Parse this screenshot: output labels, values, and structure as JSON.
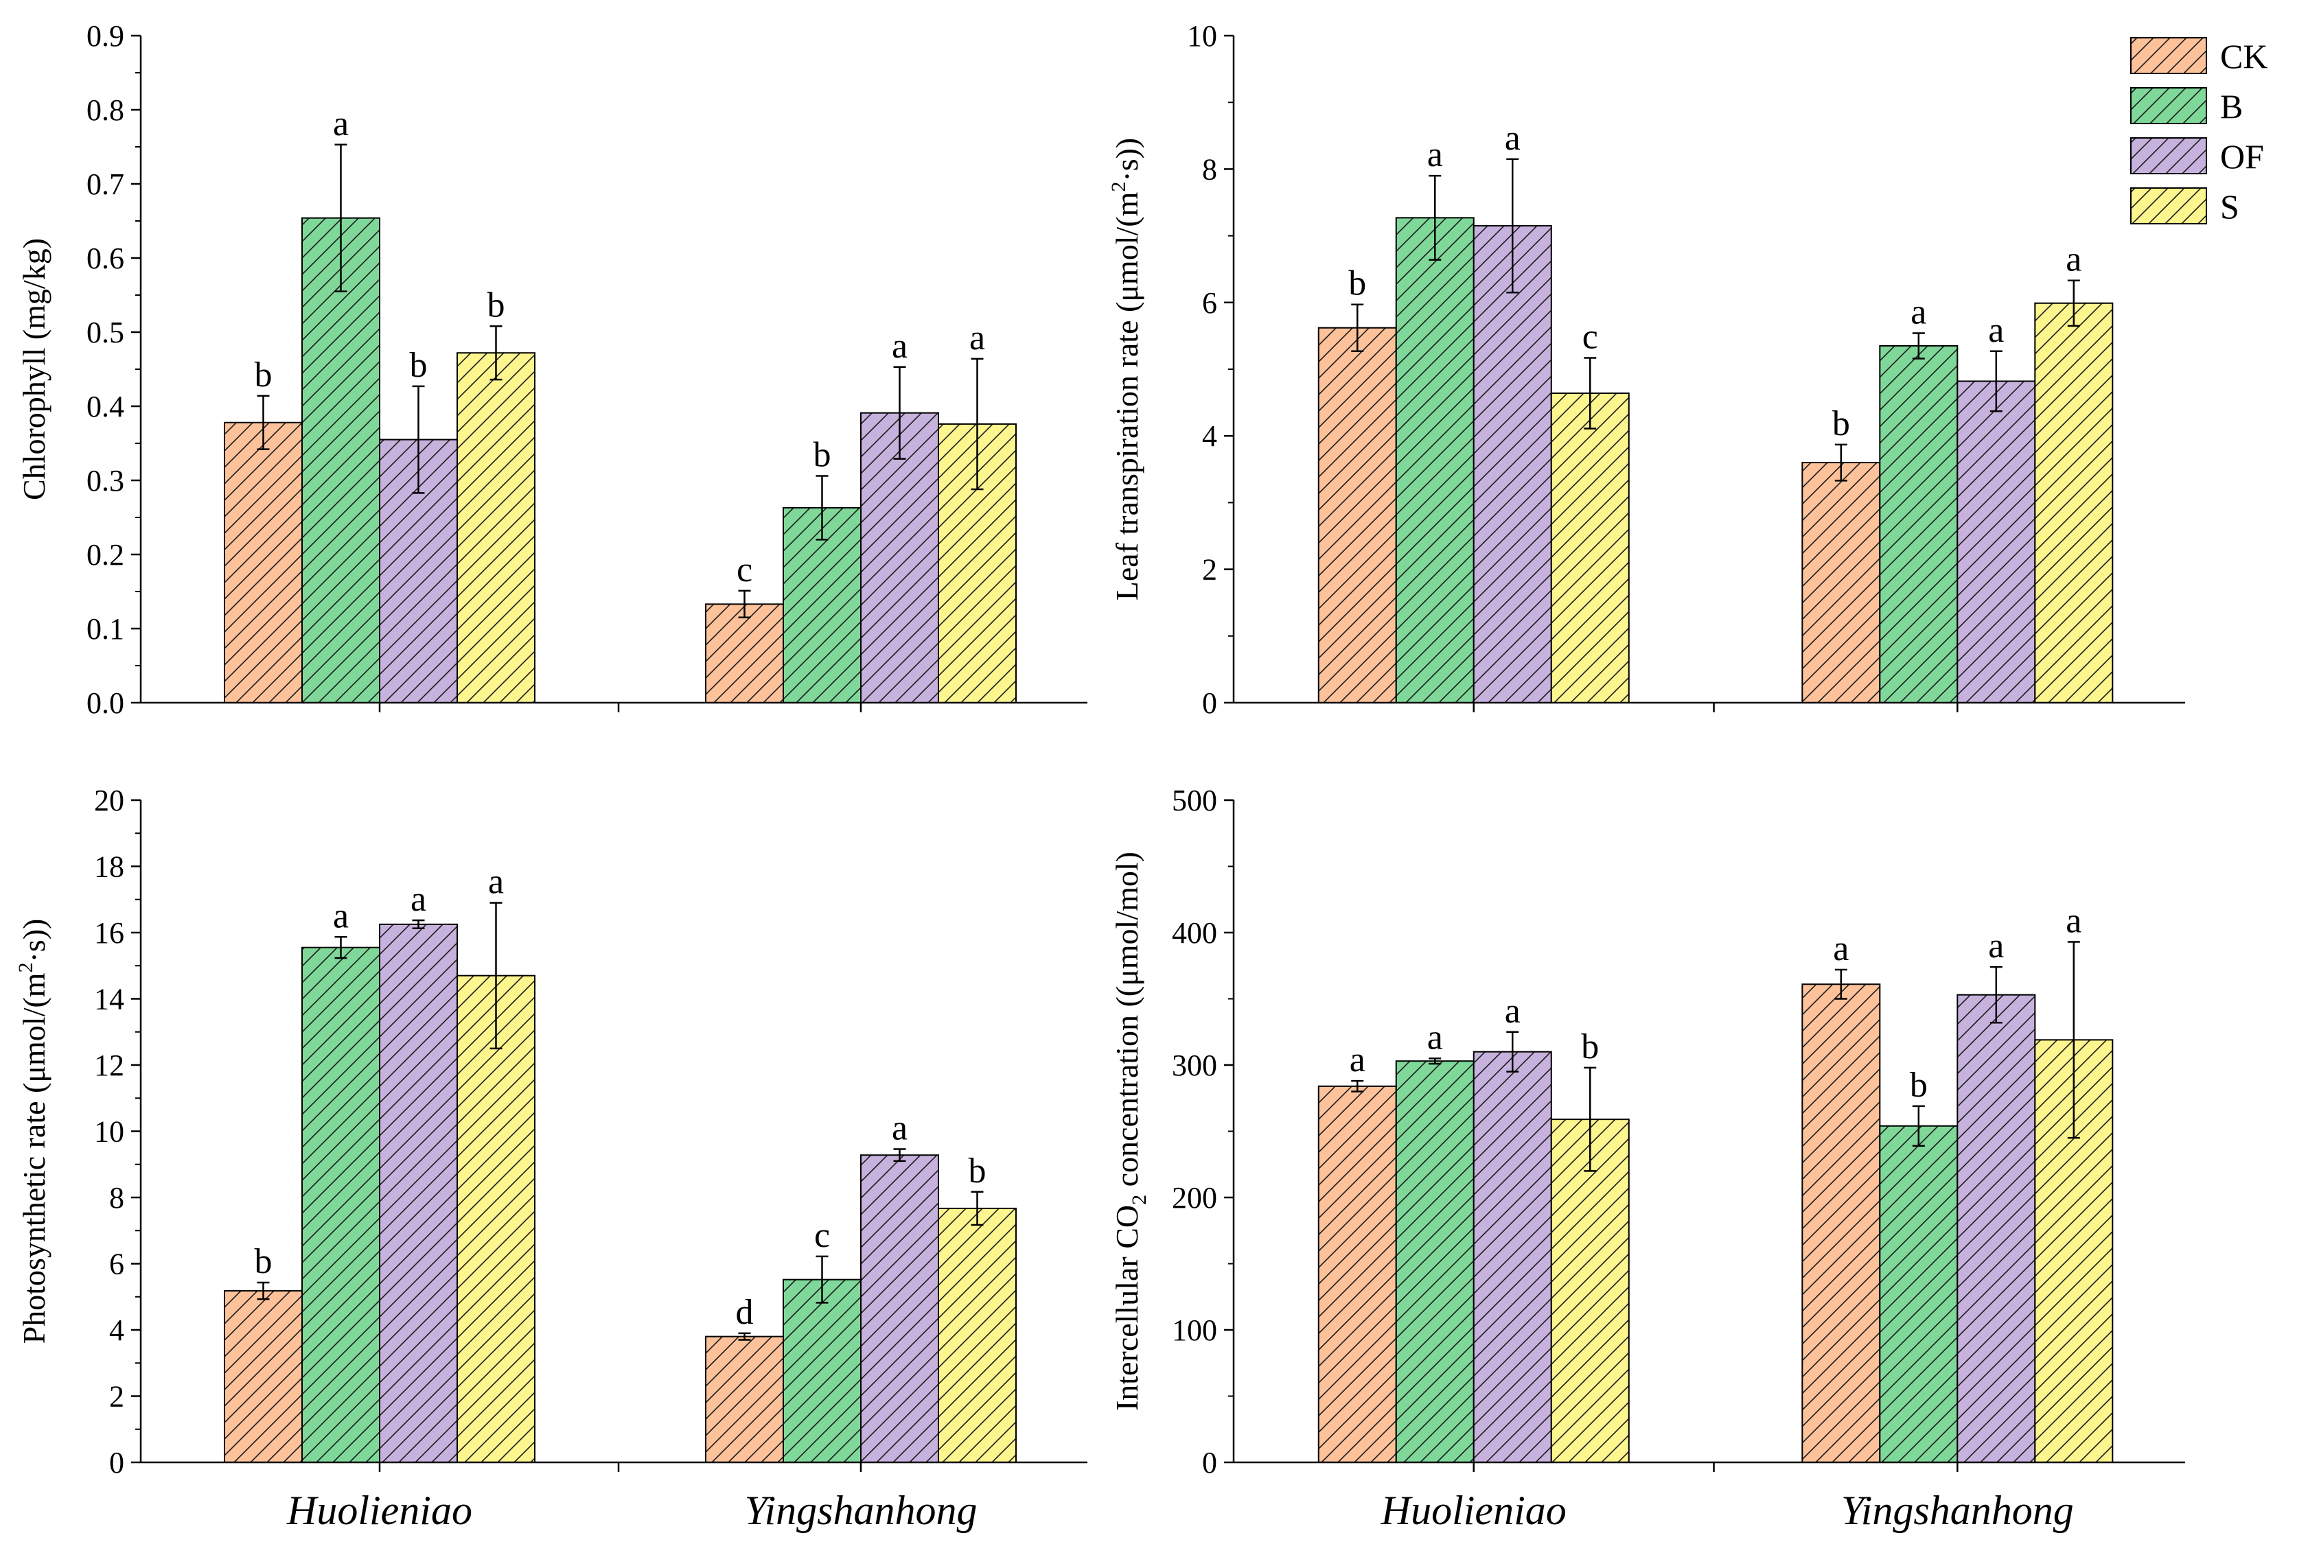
{
  "treatments": [
    {
      "key": "CK",
      "label": "CK",
      "fill": "#FDC29A"
    },
    {
      "key": "B",
      "label": "B",
      "fill": "#7FD89A"
    },
    {
      "key": "OF",
      "label": "OF",
      "fill": "#C7B2DE"
    },
    {
      "key": "S",
      "label": "S",
      "fill": "#FDF58E"
    }
  ],
  "chart_data": [
    {
      "id": "chlorophyll",
      "type": "bar",
      "ylabel": "Chlorophyll (mg/kg)",
      "ylim": [
        0,
        0.9
      ],
      "yticks": [
        0.0,
        0.1,
        0.2,
        0.3,
        0.4,
        0.5,
        0.6,
        0.7,
        0.8,
        0.9
      ],
      "ytick_labels": [
        "0.0",
        "0.1",
        "0.2",
        "0.3",
        "0.4",
        "0.5",
        "0.6",
        "0.7",
        "0.8",
        "0.9"
      ],
      "categories": [
        "Huolieniao",
        "Yingshanhong"
      ],
      "show_categories": false,
      "series": [
        {
          "name": "CK",
          "values": [
            0.378,
            0.133
          ],
          "errors": [
            0.036,
            0.018
          ],
          "letters": [
            "b",
            "c"
          ]
        },
        {
          "name": "B",
          "values": [
            0.654,
            0.263
          ],
          "errors": [
            0.099,
            0.043
          ],
          "letters": [
            "a",
            "b"
          ]
        },
        {
          "name": "OF",
          "values": [
            0.355,
            0.391
          ],
          "errors": [
            0.072,
            0.062
          ],
          "letters": [
            "b",
            "a"
          ]
        },
        {
          "name": "S",
          "values": [
            0.472,
            0.376
          ],
          "errors": [
            0.036,
            0.088
          ],
          "letters": [
            "b",
            "a"
          ]
        }
      ]
    },
    {
      "id": "transpiration",
      "type": "bar",
      "ylabel": "Leaf transpiration rate (μmol/(m²·s))",
      "ylabel_main": "Leaf transpiration rate (μmol/(m",
      "ylabel_sup": "2",
      "ylabel_tail": "·s))",
      "ylim": [
        0,
        10
      ],
      "yticks": [
        0,
        2,
        4,
        6,
        8,
        10
      ],
      "ytick_labels": [
        "0",
        "2",
        "4",
        "6",
        "8",
        "10"
      ],
      "categories": [
        "Huolieniao",
        "Yingshanhong"
      ],
      "show_categories": false,
      "legend": true,
      "series": [
        {
          "name": "CK",
          "values": [
            5.62,
            3.6
          ],
          "errors": [
            0.35,
            0.27
          ],
          "letters": [
            "b",
            "b"
          ]
        },
        {
          "name": "B",
          "values": [
            7.27,
            5.35
          ],
          "errors": [
            0.63,
            0.19
          ],
          "letters": [
            "a",
            "a"
          ]
        },
        {
          "name": "OF",
          "values": [
            7.15,
            4.82
          ],
          "errors": [
            1.0,
            0.45
          ],
          "letters": [
            "a",
            "a"
          ]
        },
        {
          "name": "S",
          "values": [
            4.64,
            5.99
          ],
          "errors": [
            0.53,
            0.34
          ],
          "letters": [
            "c",
            "a"
          ]
        }
      ]
    },
    {
      "id": "photosynthetic",
      "type": "bar",
      "ylabel": "Photosynthetic rate (μmol/(m²·s))",
      "ylabel_main": "Photosynthetic rate (μmol/(m",
      "ylabel_sup": "2",
      "ylabel_tail": "·s))",
      "ylim": [
        0,
        20
      ],
      "yticks": [
        0,
        2,
        4,
        6,
        8,
        10,
        12,
        14,
        16,
        18,
        20
      ],
      "ytick_labels": [
        "0",
        "2",
        "4",
        "6",
        "8",
        "10",
        "12",
        "14",
        "16",
        "18",
        "20"
      ],
      "categories": [
        "Huolieniao",
        "Yingshanhong"
      ],
      "show_categories": true,
      "series": [
        {
          "name": "CK",
          "values": [
            5.18,
            3.8
          ],
          "errors": [
            0.25,
            0.1
          ],
          "letters": [
            "b",
            "d"
          ]
        },
        {
          "name": "B",
          "values": [
            15.55,
            5.52
          ],
          "errors": [
            0.32,
            0.7
          ],
          "letters": [
            "a",
            "c"
          ]
        },
        {
          "name": "OF",
          "values": [
            16.25,
            9.28
          ],
          "errors": [
            0.12,
            0.18
          ],
          "letters": [
            "a",
            "a"
          ]
        },
        {
          "name": "S",
          "values": [
            14.7,
            7.67
          ],
          "errors": [
            2.2,
            0.5
          ],
          "letters": [
            "a",
            "b"
          ]
        }
      ]
    },
    {
      "id": "co2",
      "type": "bar",
      "ylabel": "Intercellular CO₂ concentration ((μmol/mol)",
      "ylabel_main": "Intercellular CO",
      "ylabel_sub": "2",
      "ylabel_tail": " concentration ((μmol/mol)",
      "ylim": [
        0,
        500
      ],
      "yticks": [
        0,
        100,
        200,
        300,
        400,
        500
      ],
      "ytick_labels": [
        "0",
        "100",
        "200",
        "300",
        "400",
        "500"
      ],
      "categories": [
        "Huolieniao",
        "Yingshanhong"
      ],
      "show_categories": true,
      "series": [
        {
          "name": "CK",
          "values": [
            284,
            361
          ],
          "errors": [
            4,
            11
          ],
          "letters": [
            "a",
            "a"
          ]
        },
        {
          "name": "B",
          "values": [
            303,
            254
          ],
          "errors": [
            2,
            15
          ],
          "letters": [
            "a",
            "b"
          ]
        },
        {
          "name": "OF",
          "values": [
            310,
            353
          ],
          "errors": [
            15,
            21
          ],
          "letters": [
            "a",
            "a"
          ]
        },
        {
          "name": "S",
          "values": [
            259,
            319
          ],
          "errors": [
            39,
            74
          ],
          "letters": [
            "b",
            "a"
          ]
        }
      ]
    }
  ]
}
